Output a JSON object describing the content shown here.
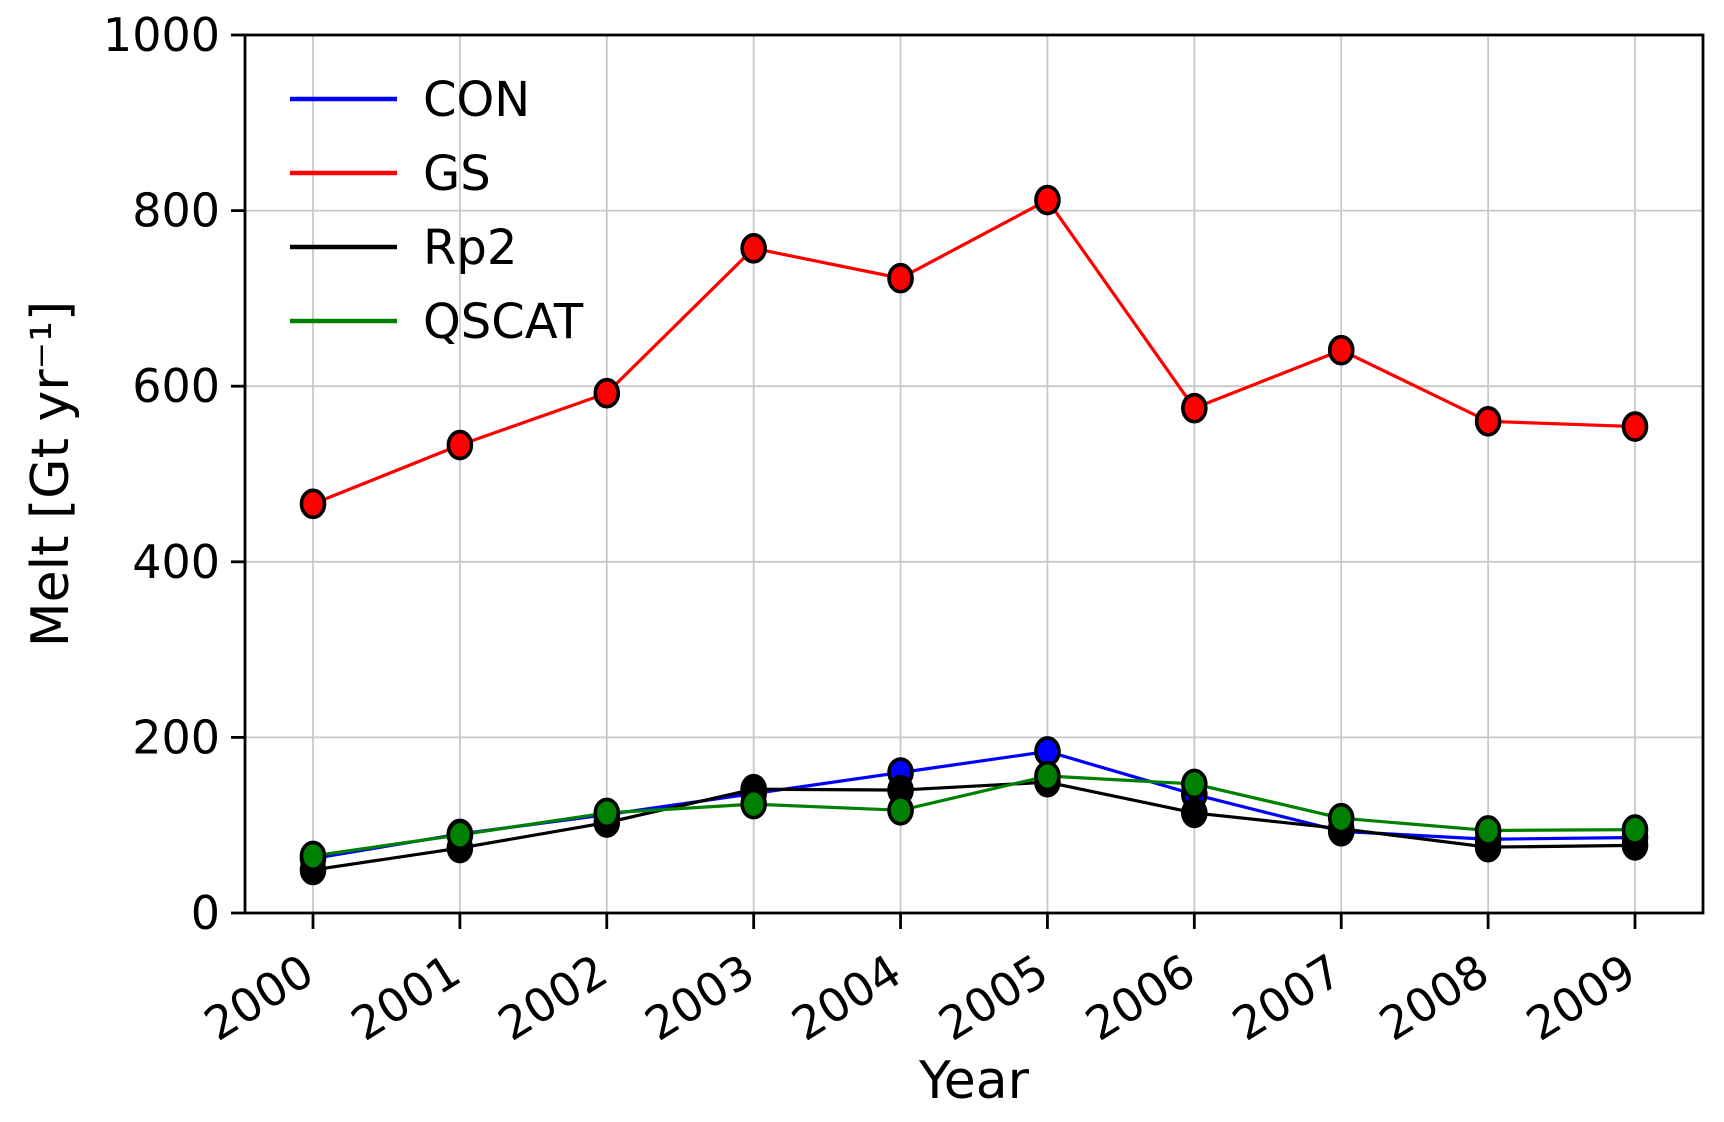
{
  "chart_data": {
    "type": "line",
    "title": "",
    "xlabel": "Year",
    "ylabel": "Melt [Gt yr⁻¹]",
    "x": [
      2000,
      2001,
      2002,
      2003,
      2004,
      2005,
      2006,
      2007,
      2008,
      2009
    ],
    "xtick_labels": [
      "2000",
      "2001",
      "2002",
      "2003",
      "2004",
      "2005",
      "2006",
      "2007",
      "2008",
      "2009"
    ],
    "ylim": [
      0,
      1000
    ],
    "yticks": [
      0,
      200,
      400,
      600,
      800,
      1000
    ],
    "grid": true,
    "grid_color": "#c8c8c8",
    "axis_color": "#000000",
    "background_color": "#ffffff",
    "legend_position": "upper-left",
    "legend_frame": false,
    "marker": {
      "shape": "circle",
      "edge_color": "#000000"
    },
    "series": [
      {
        "name": "CON",
        "color": "#0000ff",
        "values": [
          62,
          90,
          112,
          136,
          160,
          184,
          135,
          93,
          84,
          86
        ]
      },
      {
        "name": "GS",
        "color": "#ff0000",
        "values": [
          466,
          533,
          592,
          757,
          723,
          812,
          575,
          641,
          560,
          554
        ]
      },
      {
        "name": "Rp2",
        "color": "#000000",
        "values": [
          49,
          74,
          103,
          141,
          140,
          149,
          114,
          96,
          75,
          77
        ]
      },
      {
        "name": "QSCAT",
        "color": "#008000",
        "values": [
          65,
          89,
          114,
          124,
          117,
          156,
          147,
          108,
          94,
          95
        ]
      }
    ]
  }
}
